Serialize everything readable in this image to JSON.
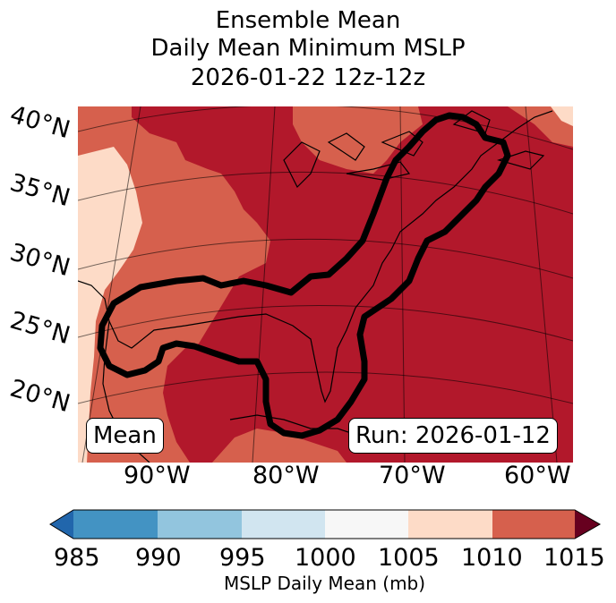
{
  "title": {
    "line1": "Ensemble Mean",
    "line2": "Daily Mean Minimum MSLP",
    "line3": "2026-01-22 12z-12z"
  },
  "map": {
    "lat_labels": [
      "40°N",
      "35°N",
      "30°N",
      "25°N",
      "20°N"
    ],
    "lon_labels": [
      "90°W",
      "80°W",
      "70°W",
      "60°W"
    ],
    "mean_label": "Mean",
    "run_label": "Run: 2026-01-12"
  },
  "colorbar": {
    "ticks": [
      "985",
      "990",
      "995",
      "1000",
      "1005",
      "1010",
      "1015"
    ],
    "colors": [
      "#2166ac",
      "#4393c3",
      "#92c5de",
      "#d1e5f0",
      "#f7f7f7",
      "#fddbc7",
      "#d6604d",
      "#b2182b",
      "#67001f"
    ],
    "label": "MSLP Daily Mean (mb)"
  }
}
